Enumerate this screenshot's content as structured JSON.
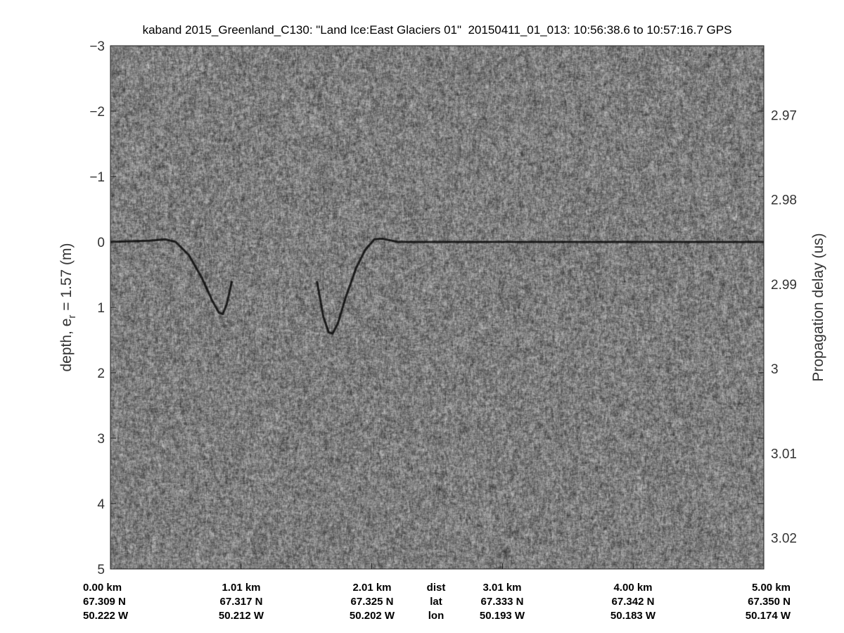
{
  "chart_data": {
    "type": "heatmap",
    "title": "kaband 2015_Greenland_C130: \"Land Ice:East Glaciers 01\"  20150411_01_013: 10:56:38.6 to 10:57:16.7 GPS",
    "ylabel_left": "depth, e",
    "ylabel_left_sub": "r",
    "ylabel_left_tail": " = 1.57 (m)",
    "ylabel_right": "Propagation delay (us)",
    "colormap": "gray",
    "ylim_left": [
      -3,
      5
    ],
    "yticks_left": [
      "-3",
      "-2",
      "-1",
      "0",
      "1",
      "2",
      "3",
      "4",
      "5"
    ],
    "yticks_right": [
      "2.97",
      "2.98",
      "2.99",
      "3",
      "3.01",
      "3.02"
    ],
    "yticks_right_values": [
      2.97,
      2.98,
      2.99,
      3.0,
      3.01,
      3.02
    ],
    "right_axis_at_depth_minus3": 2.9618,
    "right_axis_per_m": 0.007738,
    "xlim_km": [
      0,
      5
    ],
    "x_rows": [
      {
        "name": "dist",
        "labels": [
          "0.00 km",
          "1.01 km",
          "2.01 km",
          "3.01 km",
          "4.00 km",
          "5.00 km"
        ]
      },
      {
        "name": "lat",
        "labels": [
          "67.309 N",
          "67.317 N",
          "67.325 N",
          "67.333 N",
          "67.342 N",
          "67.350 N"
        ]
      },
      {
        "name": "lon",
        "labels": [
          "50.222 W",
          "50.212 W",
          "50.202 W",
          "50.193 W",
          "50.183 W",
          "50.174 W"
        ]
      }
    ],
    "x_tick_km": [
      0,
      1.0,
      2.0,
      3.0,
      4.0,
      5.0
    ],
    "surface_segments": [
      [
        [
          0,
          0
        ],
        [
          0.3,
          -0.02
        ],
        [
          0.42,
          -0.04
        ],
        [
          0.5,
          0.0
        ],
        [
          0.6,
          0.2
        ],
        [
          0.7,
          0.55
        ],
        [
          0.78,
          0.9
        ],
        [
          0.83,
          1.08
        ],
        [
          0.86,
          1.1
        ],
        [
          0.89,
          0.95
        ],
        [
          0.93,
          0.6
        ]
      ],
      [
        [
          1.58,
          0.6
        ],
        [
          1.63,
          1.15
        ],
        [
          1.67,
          1.38
        ],
        [
          1.7,
          1.4
        ],
        [
          1.74,
          1.25
        ],
        [
          1.8,
          0.85
        ],
        [
          1.88,
          0.4
        ],
        [
          1.95,
          0.12
        ],
        [
          2.02,
          -0.04
        ],
        [
          2.08,
          -0.05
        ],
        [
          2.2,
          0.0
        ],
        [
          3.0,
          0.0
        ],
        [
          5.0,
          0.0
        ]
      ]
    ]
  }
}
